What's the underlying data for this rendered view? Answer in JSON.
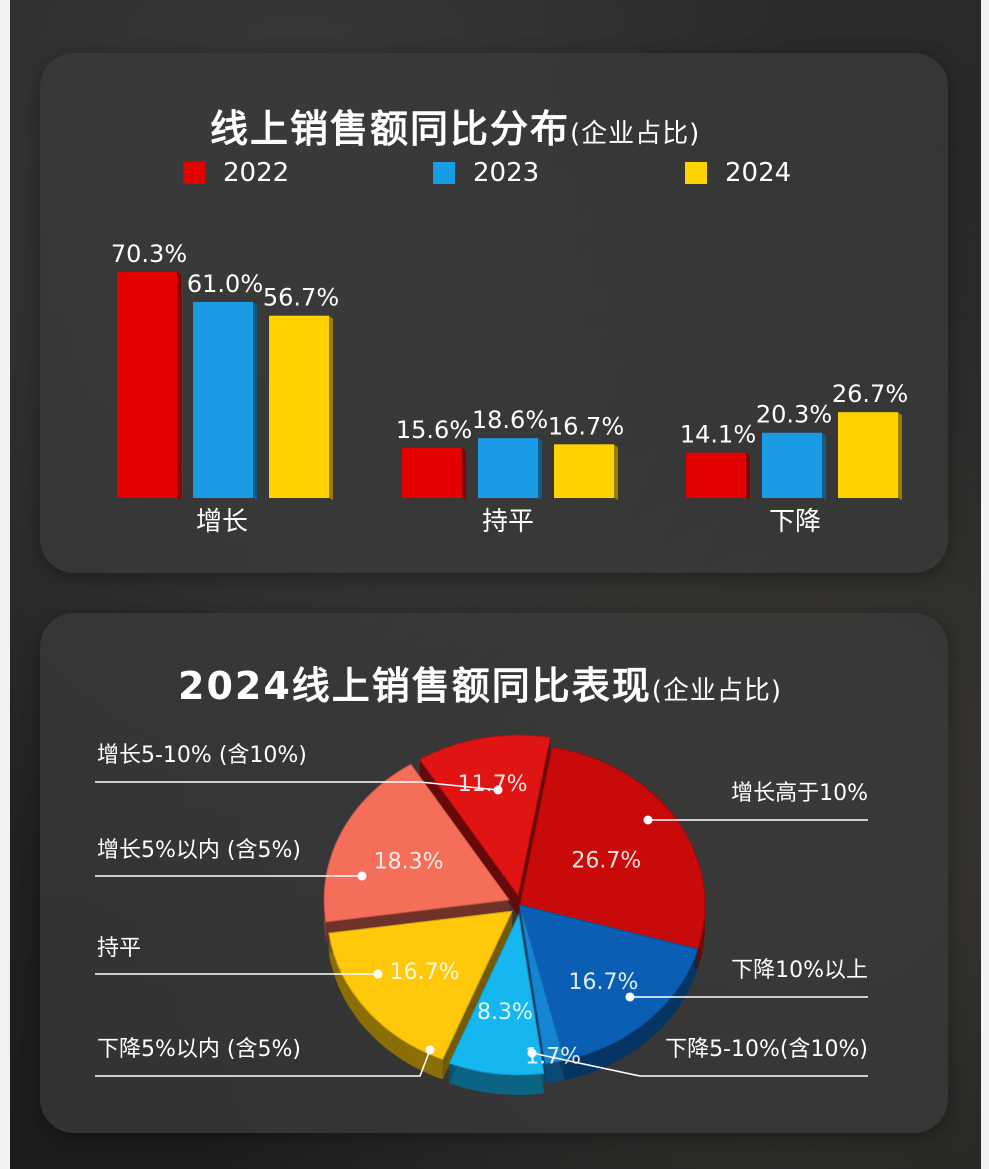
{
  "bar_section": {
    "title": "线上销售额同比分布",
    "subtitle": "(企业占比)"
  },
  "pie_section": {
    "title": "2024线上销售额同比表现",
    "subtitle": "(企业占比)"
  },
  "colors": {
    "y2022": "#e30000",
    "y2023": "#1a9be6",
    "y2024": "#ffd200"
  },
  "chart_data": [
    {
      "type": "bar",
      "title": "线上销售额同比分布 (企业占比)",
      "categories": [
        "增长",
        "持平",
        "下降"
      ],
      "series": [
        {
          "name": "2022",
          "values": [
            70.3,
            15.6,
            14.1
          ],
          "labels": [
            "70.3%",
            "15.6%",
            "14.1%"
          ],
          "color": "#e30000"
        },
        {
          "name": "2023",
          "values": [
            61.0,
            18.6,
            20.3
          ],
          "labels": [
            "61.0%",
            "18.6%",
            "20.3%"
          ],
          "color": "#1a9be6"
        },
        {
          "name": "2024",
          "values": [
            56.7,
            16.7,
            26.7
          ],
          "labels": [
            "56.7%",
            "16.7%",
            "26.7%"
          ],
          "color": "#ffd200"
        }
      ],
      "legend": "top",
      "grid": false,
      "ylim": [
        0,
        70.3
      ]
    },
    {
      "type": "pie",
      "title": "2024线上销售额同比表现 (企业占比)",
      "slices": [
        {
          "label": "增长高于10%",
          "value": 26.7,
          "text": "26.7%",
          "color": "#c90a0a"
        },
        {
          "label": "下降10%以上",
          "value": 16.7,
          "text": "16.7%",
          "color": "#0a5fb4"
        },
        {
          "label": "下降5-10%(含10%)",
          "value": 1.7,
          "text": "1.7%",
          "color": "#1584d2"
        },
        {
          "label": "下降5%以内 (含5%)",
          "value": 8.3,
          "text": "8.3%",
          "color": "#16b6f0"
        },
        {
          "label": "持平",
          "value": 16.7,
          "text": "16.7%",
          "color": "#ffc80a"
        },
        {
          "label": "增长5%以内 (含5%)",
          "value": 18.3,
          "text": "18.3%",
          "color": "#f56e5a"
        },
        {
          "label": "增长5-10% (含10%)",
          "value": 11.7,
          "text": "11.7%",
          "color": "#e11414"
        }
      ],
      "legend": "callouts"
    }
  ]
}
